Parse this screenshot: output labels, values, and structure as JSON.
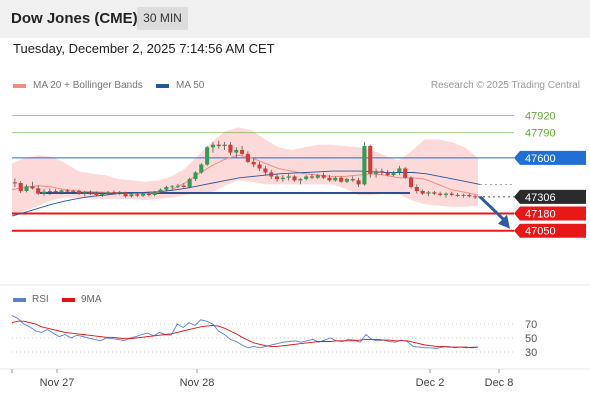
{
  "header": {
    "title": "Dow Jones (CME)",
    "timeframe": "30 MIN",
    "datetime": "Tuesday, December 2, 2025 7:14:56 AM CET"
  },
  "legend": {
    "items": [
      {
        "label": "MA 20 + Bollinger Bands",
        "color": "#f08c84"
      },
      {
        "label": "MA 50",
        "color": "#2b5797"
      }
    ],
    "credit": "Research © 2025 Trading Central"
  },
  "rsi_legend": {
    "items": [
      {
        "label": "RSI",
        "color": "#5b7fd6"
      },
      {
        "label": "9MA",
        "color": "#e01010"
      }
    ]
  },
  "colors": {
    "resistance": "#66aa33",
    "pivot": "#1f6fd6",
    "support": "#e81818",
    "current": "#2a2a2a",
    "arrow": "#2f5aa8",
    "band_fill": "#fbd4d4",
    "candle_up": "#2f9e55",
    "candle_down": "#d63a3a"
  },
  "chart_data": [
    {
      "type": "candlestick",
      "price_axis_range": [
        46640,
        48075
      ],
      "x_axis_ticks": [
        "Nov 27",
        "Nov 28",
        "Dec 2",
        "Dec 8"
      ],
      "grid": false,
      "levels": [
        {
          "label": "47920",
          "kind": "resistance"
        },
        {
          "label": "47790",
          "kind": "resistance"
        },
        {
          "label": "47600",
          "kind": "pivot"
        },
        {
          "label": "47306",
          "kind": "current"
        },
        {
          "label": "47180",
          "kind": "support"
        },
        {
          "label": "47050",
          "kind": "support"
        }
      ],
      "ohlc_approx": [
        [
          47415,
          47445,
          47380,
          47410
        ],
        [
          47410,
          47425,
          47335,
          47350
        ],
        [
          47350,
          47400,
          47340,
          47385
        ],
        [
          47385,
          47420,
          47360,
          47370
        ],
        [
          47370,
          47390,
          47320,
          47330
        ],
        [
          47330,
          47365,
          47315,
          47345
        ],
        [
          47345,
          47370,
          47320,
          47350
        ],
        [
          47350,
          47365,
          47330,
          47340
        ],
        [
          47340,
          47360,
          47325,
          47355
        ],
        [
          47355,
          47365,
          47335,
          47345
        ],
        [
          47345,
          47360,
          47330,
          47350
        ],
        [
          47350,
          47360,
          47320,
          47330
        ],
        [
          47330,
          47350,
          47310,
          47340
        ],
        [
          47340,
          47355,
          47320,
          47335
        ],
        [
          47335,
          47345,
          47310,
          47320
        ],
        [
          47320,
          47340,
          47305,
          47330
        ],
        [
          47330,
          47350,
          47320,
          47340
        ],
        [
          47340,
          47355,
          47325,
          47335
        ],
        [
          47335,
          47350,
          47320,
          47340
        ],
        [
          47340,
          47345,
          47300,
          47310
        ],
        [
          47310,
          47335,
          47300,
          47325
        ],
        [
          47325,
          47340,
          47305,
          47315
        ],
        [
          47315,
          47335,
          47305,
          47330
        ],
        [
          47330,
          47345,
          47310,
          47320
        ],
        [
          47320,
          47350,
          47310,
          47345
        ],
        [
          47345,
          47370,
          47330,
          47360
        ],
        [
          47360,
          47390,
          47345,
          47380
        ],
        [
          47380,
          47395,
          47360,
          47385
        ],
        [
          47385,
          47405,
          47370,
          47390
        ],
        [
          47390,
          47410,
          47375,
          47380
        ],
        [
          47380,
          47450,
          47370,
          47440
        ],
        [
          47440,
          47500,
          47425,
          47490
        ],
        [
          47490,
          47560,
          47480,
          47550
        ],
        [
          47550,
          47690,
          47540,
          47680
        ],
        [
          47680,
          47720,
          47640,
          47700
        ],
        [
          47700,
          47730,
          47670,
          47690
        ],
        [
          47690,
          47720,
          47660,
          47700
        ],
        [
          47700,
          47720,
          47620,
          47640
        ],
        [
          47640,
          47680,
          47600,
          47660
        ],
        [
          47660,
          47690,
          47620,
          47630
        ],
        [
          47630,
          47650,
          47560,
          47570
        ],
        [
          47570,
          47600,
          47530,
          47550
        ],
        [
          47550,
          47570,
          47500,
          47520
        ],
        [
          47520,
          47540,
          47470,
          47490
        ],
        [
          47490,
          47510,
          47440,
          47460
        ],
        [
          47460,
          47480,
          47420,
          47440
        ],
        [
          47440,
          47470,
          47420,
          47450
        ],
        [
          47450,
          47480,
          47430,
          47460
        ],
        [
          47460,
          47470,
          47420,
          47430
        ],
        [
          47430,
          47450,
          47400,
          47440
        ],
        [
          47440,
          47470,
          47430,
          47460
        ],
        [
          47460,
          47480,
          47440,
          47450
        ],
        [
          47450,
          47480,
          47440,
          47470
        ],
        [
          47470,
          47490,
          47440,
          47450
        ],
        [
          47450,
          47470,
          47420,
          47430
        ],
        [
          47430,
          47460,
          47420,
          47450
        ],
        [
          47450,
          47460,
          47410,
          47420
        ],
        [
          47420,
          47450,
          47410,
          47440
        ],
        [
          47440,
          47460,
          47420,
          47430
        ],
        [
          47430,
          47450,
          47380,
          47400
        ],
        [
          47400,
          47720,
          47390,
          47690
        ],
        [
          47690,
          47700,
          47450,
          47480
        ],
        [
          47480,
          47520,
          47450,
          47500
        ],
        [
          47500,
          47520,
          47470,
          47490
        ],
        [
          47490,
          47510,
          47460,
          47470
        ],
        [
          47470,
          47500,
          47460,
          47490
        ],
        [
          47490,
          47540,
          47470,
          47520
        ],
        [
          47520,
          47530,
          47440,
          47450
        ],
        [
          47450,
          47460,
          47370,
          47380
        ],
        [
          47380,
          47400,
          47330,
          47350
        ],
        [
          47350,
          47360,
          47320,
          47330
        ],
        [
          47330,
          47350,
          47310,
          47340
        ],
        [
          47340,
          47350,
          47320,
          47330
        ],
        [
          47330,
          47345,
          47310,
          47320
        ],
        [
          47320,
          47340,
          47300,
          47330
        ],
        [
          47330,
          47345,
          47310,
          47320
        ],
        [
          47320,
          47335,
          47305,
          47315
        ],
        [
          47315,
          47330,
          47300,
          47320
        ],
        [
          47320,
          47330,
          47300,
          47310
        ],
        [
          47310,
          47320,
          47290,
          47306
        ]
      ],
      "bollinger": {
        "upper": [
          47560,
          47600,
          47620,
          47610,
          47560,
          47500,
          47480,
          47470,
          47440,
          47430,
          47420,
          47430,
          47460,
          47520,
          47620,
          47720,
          47800,
          47830,
          47810,
          47740,
          47680,
          47660,
          47680,
          47700,
          47700,
          47690,
          47680,
          47660,
          47620,
          47580,
          47650,
          47740,
          47740,
          47720,
          47680,
          47600
        ],
        "lower": [
          47160,
          47200,
          47240,
          47280,
          47300,
          47300,
          47290,
          47290,
          47290,
          47290,
          47280,
          47290,
          47300,
          47320,
          47330,
          47340,
          47390,
          47430,
          47420,
          47400,
          47400,
          47400,
          47400,
          47400,
          47400,
          47370,
          47320,
          47320,
          47330,
          47330,
          47280,
          47250,
          47240,
          47230,
          47230,
          47240
        ],
        "middle": [
          47360,
          47380,
          47390,
          47380,
          47360,
          47350,
          47345,
          47340,
          47335,
          47330,
          47330,
          47340,
          47360,
          47410,
          47480,
          47540,
          47590,
          47620,
          47600,
          47560,
          47520,
          47500,
          47480,
          47470,
          47460,
          47460,
          47470,
          47480,
          47470,
          47450,
          47450,
          47440,
          47400,
          47360,
          47340,
          47320
        ]
      },
      "ma50": [
        47160,
        47190,
        47220,
        47250,
        47275,
        47295,
        47310,
        47320,
        47330,
        47335,
        47340,
        47345,
        47355,
        47370,
        47390,
        47410,
        47430,
        47450,
        47460,
        47470,
        47480,
        47485,
        47490,
        47495,
        47500,
        47500,
        47500,
        47495,
        47490,
        47490,
        47490,
        47480,
        47460,
        47440,
        47420,
        47400
      ]
    },
    {
      "type": "line",
      "y_ticks": [
        70,
        50,
        30
      ],
      "series": [
        {
          "name": "RSI",
          "values": [
            82,
            78,
            70,
            66,
            60,
            58,
            62,
            57,
            52,
            55,
            50,
            54,
            52,
            50,
            48,
            46,
            50,
            49,
            48,
            46,
            50,
            52,
            55,
            57,
            53,
            58,
            55,
            54,
            70,
            65,
            72,
            68,
            76,
            74,
            70,
            60,
            55,
            48,
            45,
            40,
            36,
            38,
            36,
            38,
            40,
            42,
            44,
            45,
            46,
            44,
            46,
            48,
            44,
            47,
            50,
            46,
            45,
            48,
            47,
            44,
            55,
            48,
            46,
            47,
            45,
            44,
            47,
            45,
            38,
            37,
            36,
            36,
            35,
            37,
            38,
            36,
            37,
            36,
            37,
            37
          ]
        },
        {
          "name": "9MA",
          "values": [
            72,
            74,
            74,
            72,
            70,
            66,
            64,
            62,
            60,
            58,
            57,
            56,
            55,
            54,
            53,
            52,
            51,
            51,
            50,
            49,
            49,
            50,
            51,
            52,
            53,
            54,
            55,
            56,
            58,
            60,
            62,
            64,
            66,
            67,
            68,
            67,
            64,
            60,
            56,
            51,
            47,
            43,
            41,
            39,
            38,
            38,
            39,
            40,
            41,
            42,
            43,
            44,
            45,
            45,
            45,
            46,
            46,
            46,
            46,
            47,
            48,
            48,
            48,
            47,
            47,
            46,
            46,
            46,
            44,
            42,
            40,
            39,
            38,
            38,
            37,
            37,
            37,
            37,
            36,
            37
          ]
        }
      ]
    }
  ]
}
